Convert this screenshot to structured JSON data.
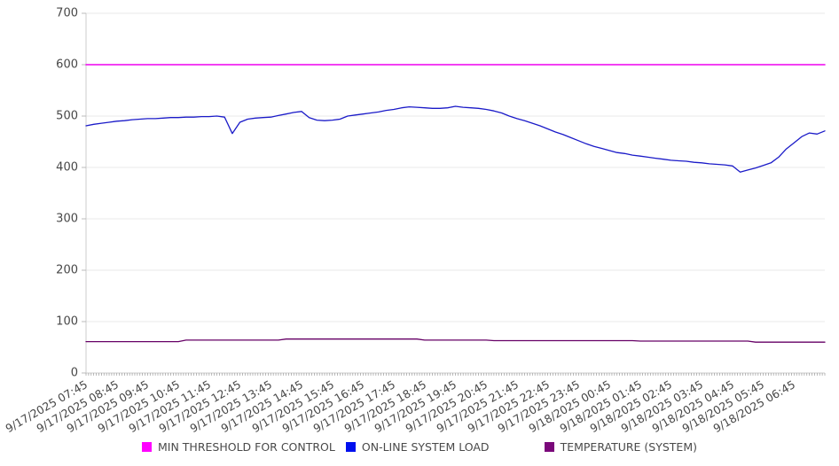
{
  "chart_data": {
    "type": "line",
    "title": "",
    "legend_position": "bottom",
    "grid": "horizontal",
    "x_axis": {
      "labels": [
        "9/17/2025 07:45",
        "9/17/2025 08:45",
        "9/17/2025 09:45",
        "9/17/2025 10:45",
        "9/17/2025 11:45",
        "9/17/2025 12:45",
        "9/17/2025 13:45",
        "9/17/2025 14:45",
        "9/17/2025 15:45",
        "9/17/2025 16:45",
        "9/17/2025 17:45",
        "9/17/2025 18:45",
        "9/17/2025 19:45",
        "9/17/2025 20:45",
        "9/17/2025 21:45",
        "9/17/2025 22:45",
        "9/17/2025 23:45",
        "9/18/2025 00:45",
        "9/18/2025 01:45",
        "9/18/2025 02:45",
        "9/18/2025 03:45",
        "9/18/2025 04:45",
        "9/18/2025 05:45",
        "9/18/2025 06:45"
      ],
      "hours_span": 24,
      "minor_ticks_per_hour": 12,
      "label_rotation_deg": -30
    },
    "y_axis": {
      "min": 0,
      "max": 700,
      "tick_step": 100,
      "ticks": [
        0,
        100,
        200,
        300,
        400,
        500,
        600,
        700
      ]
    },
    "series": [
      {
        "name": "MIN THRESHOLD FOR CONTROL",
        "color": "#EE00EE",
        "swatch_color": "#FF00FF",
        "type": "constant",
        "value": 600
      },
      {
        "name": "ON-LINE SYSTEM LOAD",
        "color": "#1A1AC8",
        "swatch_color": "#0010EE",
        "type": "points",
        "points_per_hour": 4,
        "values": [
          481,
          484,
          486,
          488,
          490,
          491,
          493,
          494,
          495,
          495,
          496,
          497,
          497,
          498,
          498,
          499,
          499,
          500,
          498,
          466,
          488,
          494,
          496,
          497,
          498,
          501,
          504,
          507,
          509,
          497,
          492,
          491,
          492,
          494,
          500,
          502,
          504,
          506,
          508,
          511,
          513,
          516,
          518,
          517,
          516,
          515,
          515,
          516,
          519,
          517,
          516,
          515,
          513,
          510,
          506,
          500,
          495,
          491,
          486,
          481,
          475,
          469,
          464,
          458,
          452,
          446,
          441,
          437,
          433,
          429,
          427,
          424,
          422,
          420,
          418,
          416,
          414,
          413,
          412,
          410,
          409,
          407,
          406,
          405,
          403,
          391,
          395,
          399,
          404,
          409,
          420,
          436,
          448,
          460,
          467,
          465,
          471
        ]
      },
      {
        "name": "TEMPERATURE (SYSTEM)",
        "color": "#660066",
        "swatch_color": "#7A087A",
        "type": "points",
        "points_per_hour": 4,
        "values": [
          61,
          61,
          61,
          61,
          61,
          61,
          61,
          61,
          61,
          61,
          61,
          61,
          61,
          64,
          64,
          64,
          64,
          64,
          64,
          64,
          64,
          64,
          64,
          64,
          64,
          64,
          66,
          66,
          66,
          66,
          66,
          66,
          66,
          66,
          66,
          66,
          66,
          66,
          66,
          66,
          66,
          66,
          66,
          66,
          64,
          64,
          64,
          64,
          64,
          64,
          64,
          64,
          64,
          63,
          63,
          63,
          63,
          63,
          63,
          63,
          63,
          63,
          63,
          63,
          63,
          63,
          63,
          63,
          63,
          63,
          63,
          63,
          62,
          62,
          62,
          62,
          62,
          62,
          62,
          62,
          62,
          62,
          62,
          62,
          62,
          62,
          62,
          60,
          60,
          60,
          60,
          60,
          60,
          60,
          60,
          60,
          60
        ]
      }
    ]
  }
}
